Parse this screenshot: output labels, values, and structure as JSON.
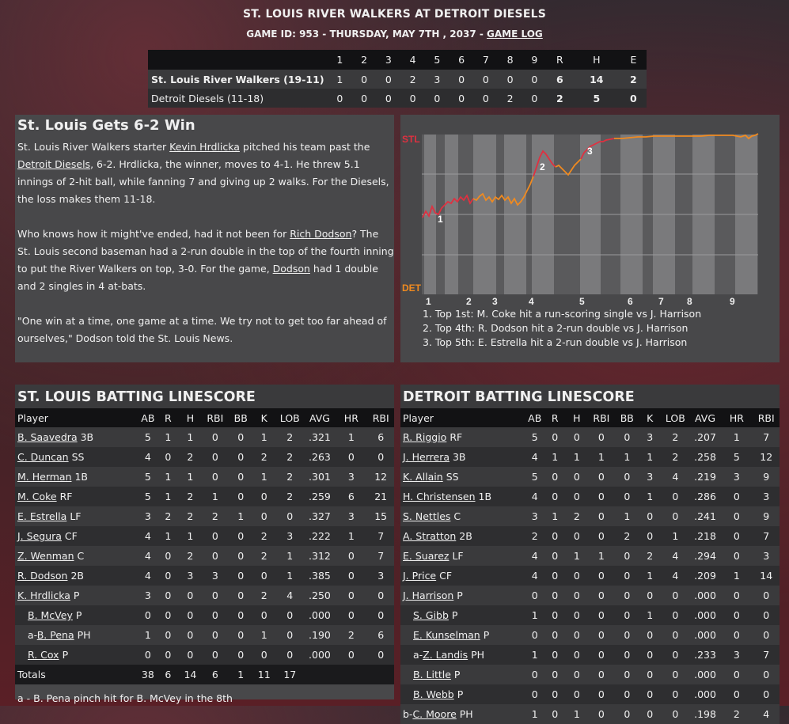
{
  "header": {
    "title": "ST. LOUIS RIVER WALKERS AT DETROIT DIESELS",
    "subtitle": "GAME ID: 953 - THURSDAY, MAY 7TH , 2037 - ",
    "game_log_link": "GAME LOG"
  },
  "linescore": {
    "columns": [
      "1",
      "2",
      "3",
      "4",
      "5",
      "6",
      "7",
      "8",
      "9",
      "R",
      "H",
      "E"
    ],
    "rows": [
      {
        "team": "St. Louis River Walkers (19-11)",
        "innings": [
          "1",
          "0",
          "0",
          "2",
          "3",
          "0",
          "0",
          "0",
          "0"
        ],
        "r": "6",
        "h": "14",
        "e": "2"
      },
      {
        "team": "Detroit Diesels (11-18)",
        "innings": [
          "0",
          "0",
          "0",
          "0",
          "0",
          "0",
          "0",
          "2",
          "0"
        ],
        "r": "2",
        "h": "5",
        "e": "0"
      }
    ]
  },
  "recap": {
    "title": "St. Louis Gets 6-2 Win",
    "p1": [
      "St. Louis River Walkers starter ",
      "Kevin Hrdlicka",
      " pitched his team past the ",
      "Detroit Diesels",
      ", 6-2. Hrdlicka, the winner, moves to 4-1. He threw 5.1 innings of 2-hit ball, while fanning 7 and giving up 2 walks. For the Diesels, the loss makes them 11-18."
    ],
    "p2": [
      "Who knows how it might've ended, had it not been for ",
      "Rich Dodson",
      "? The St. Louis second baseman had a 2-run double in the top of the fourth inning to put the River Walkers on top, 3-0. For the game, ",
      "Dodson",
      " had 1 double and 2 singles in 4 at-bats."
    ],
    "p3": "\"One win at a time, one game at a time. We try not to get too far ahead of ourselves,\" Dodson told the St. Louis News."
  },
  "win_prob": {
    "top_label": "STL",
    "bottom_label": "DET",
    "innings": [
      "1",
      "2",
      "3",
      "4",
      "5",
      "6",
      "7",
      "8",
      "9"
    ],
    "colors": {
      "stl": "#e03040",
      "det": "#f08a20"
    },
    "markers": [
      "1",
      "2",
      "3"
    ],
    "plays": [
      "1. Top 1st: M. Coke hit a run-scoring single vs J. Harrison",
      "2. Top 4th: R. Dodson hit a 2-run double vs J. Harrison",
      "3. Top 5th: E. Estrella hit a 2-run double vs J. Harrison"
    ]
  },
  "stl_batting": {
    "title": "ST. LOUIS BATTING LINESCORE",
    "columns": [
      "Player",
      "AB",
      "R",
      "H",
      "RBI",
      "BB",
      "K",
      "LOB",
      "AVG",
      "HR",
      "RBI"
    ],
    "rows": [
      {
        "prefix": "",
        "name": "B. Saavedra",
        "pos": "3B",
        "sub": false,
        "vals": [
          "5",
          "1",
          "1",
          "0",
          "0",
          "1",
          "2",
          ".321",
          "1",
          "6"
        ]
      },
      {
        "prefix": "",
        "name": "C. Duncan",
        "pos": "SS",
        "sub": false,
        "vals": [
          "4",
          "0",
          "2",
          "0",
          "0",
          "2",
          "2",
          ".263",
          "0",
          "0"
        ]
      },
      {
        "prefix": "",
        "name": "M. Herman",
        "pos": "1B",
        "sub": false,
        "vals": [
          "5",
          "1",
          "1",
          "0",
          "0",
          "1",
          "2",
          ".301",
          "3",
          "12"
        ]
      },
      {
        "prefix": "",
        "name": "M. Coke",
        "pos": "RF",
        "sub": false,
        "vals": [
          "5",
          "1",
          "2",
          "1",
          "0",
          "0",
          "2",
          ".259",
          "6",
          "21"
        ]
      },
      {
        "prefix": "",
        "name": "E. Estrella",
        "pos": "LF",
        "sub": false,
        "vals": [
          "3",
          "2",
          "2",
          "2",
          "1",
          "0",
          "0",
          ".327",
          "3",
          "15"
        ]
      },
      {
        "prefix": "",
        "name": "J. Segura",
        "pos": "CF",
        "sub": false,
        "vals": [
          "4",
          "1",
          "1",
          "0",
          "0",
          "2",
          "3",
          ".222",
          "1",
          "7"
        ]
      },
      {
        "prefix": "",
        "name": "Z. Wenman",
        "pos": "C",
        "sub": false,
        "vals": [
          "4",
          "0",
          "2",
          "0",
          "0",
          "2",
          "1",
          ".312",
          "0",
          "7"
        ]
      },
      {
        "prefix": "",
        "name": "R. Dodson",
        "pos": "2B",
        "sub": false,
        "vals": [
          "4",
          "0",
          "3",
          "3",
          "0",
          "0",
          "1",
          ".385",
          "0",
          "3"
        ]
      },
      {
        "prefix": "",
        "name": "K. Hrdlicka",
        "pos": "P",
        "sub": false,
        "vals": [
          "3",
          "0",
          "0",
          "0",
          "0",
          "2",
          "4",
          ".250",
          "0",
          "0"
        ]
      },
      {
        "prefix": "",
        "name": "B. McVey",
        "pos": "P",
        "sub": true,
        "vals": [
          "0",
          "0",
          "0",
          "0",
          "0",
          "0",
          "0",
          ".000",
          "0",
          "0"
        ]
      },
      {
        "prefix": "a-",
        "name": "B. Pena",
        "pos": "PH",
        "sub": true,
        "vals": [
          "1",
          "0",
          "0",
          "0",
          "0",
          "1",
          "0",
          ".190",
          "2",
          "6"
        ]
      },
      {
        "prefix": "",
        "name": "R. Cox",
        "pos": "P",
        "sub": true,
        "vals": [
          "0",
          "0",
          "0",
          "0",
          "0",
          "0",
          "0",
          ".000",
          "0",
          "0"
        ]
      }
    ],
    "totals": {
      "label": "Totals",
      "vals": [
        "38",
        "6",
        "14",
        "6",
        "1",
        "11",
        "17",
        "",
        "",
        ""
      ]
    },
    "footnote": "a - B. Pena pinch hit for B. McVey in the 8th"
  },
  "det_batting": {
    "title": "DETROIT BATTING LINESCORE",
    "columns": [
      "Player",
      "AB",
      "R",
      "H",
      "RBI",
      "BB",
      "K",
      "LOB",
      "AVG",
      "HR",
      "RBI"
    ],
    "rows": [
      {
        "prefix": "",
        "name": "R. Riggio",
        "pos": "RF",
        "sub": false,
        "vals": [
          "5",
          "0",
          "0",
          "0",
          "0",
          "3",
          "2",
          ".207",
          "1",
          "7"
        ]
      },
      {
        "prefix": "",
        "name": "J. Herrera",
        "pos": "3B",
        "sub": false,
        "vals": [
          "4",
          "1",
          "1",
          "1",
          "1",
          "1",
          "2",
          ".258",
          "5",
          "12"
        ]
      },
      {
        "prefix": "",
        "name": "K. Allain",
        "pos": "SS",
        "sub": false,
        "vals": [
          "5",
          "0",
          "0",
          "0",
          "0",
          "3",
          "4",
          ".219",
          "3",
          "9"
        ]
      },
      {
        "prefix": "",
        "name": "H. Christensen",
        "pos": "1B",
        "sub": false,
        "vals": [
          "4",
          "0",
          "0",
          "0",
          "0",
          "1",
          "0",
          ".286",
          "0",
          "3"
        ]
      },
      {
        "prefix": "",
        "name": "S. Nettles",
        "pos": "C",
        "sub": false,
        "vals": [
          "3",
          "1",
          "2",
          "0",
          "1",
          "0",
          "0",
          ".241",
          "0",
          "9"
        ]
      },
      {
        "prefix": "",
        "name": "A. Stratton",
        "pos": "2B",
        "sub": false,
        "vals": [
          "2",
          "0",
          "0",
          "0",
          "2",
          "0",
          "1",
          ".218",
          "0",
          "7"
        ]
      },
      {
        "prefix": "",
        "name": "E. Suarez",
        "pos": "LF",
        "sub": false,
        "vals": [
          "4",
          "0",
          "1",
          "1",
          "0",
          "2",
          "4",
          ".294",
          "0",
          "3"
        ]
      },
      {
        "prefix": "",
        "name": "J. Price",
        "pos": "CF",
        "sub": false,
        "vals": [
          "4",
          "0",
          "0",
          "0",
          "0",
          "1",
          "4",
          ".209",
          "1",
          "14"
        ]
      },
      {
        "prefix": "",
        "name": "J. Harrison",
        "pos": "P",
        "sub": false,
        "vals": [
          "0",
          "0",
          "0",
          "0",
          "0",
          "0",
          "0",
          ".000",
          "0",
          "0"
        ]
      },
      {
        "prefix": "",
        "name": "S. Gibb",
        "pos": "P",
        "sub": true,
        "vals": [
          "1",
          "0",
          "0",
          "0",
          "0",
          "1",
          "0",
          ".000",
          "0",
          "0"
        ]
      },
      {
        "prefix": "",
        "name": "E. Kunselman",
        "pos": "P",
        "sub": true,
        "vals": [
          "0",
          "0",
          "0",
          "0",
          "0",
          "0",
          "0",
          ".000",
          "0",
          "0"
        ]
      },
      {
        "prefix": "a-",
        "name": "Z. Landis",
        "pos": "PH",
        "sub": true,
        "vals": [
          "1",
          "0",
          "0",
          "0",
          "0",
          "0",
          "0",
          ".233",
          "3",
          "7"
        ]
      },
      {
        "prefix": "",
        "name": "B. Little",
        "pos": "P",
        "sub": true,
        "vals": [
          "0",
          "0",
          "0",
          "0",
          "0",
          "0",
          "0",
          ".000",
          "0",
          "0"
        ]
      },
      {
        "prefix": "",
        "name": "B. Webb",
        "pos": "P",
        "sub": true,
        "vals": [
          "0",
          "0",
          "0",
          "0",
          "0",
          "0",
          "0",
          ".000",
          "0",
          "0"
        ]
      },
      {
        "prefix": "b-",
        "name": "C. Moore",
        "pos": "PH",
        "sub": false,
        "vals": [
          "1",
          "0",
          "1",
          "0",
          "0",
          "0",
          "0",
          ".198",
          "2",
          "4"
        ]
      }
    ]
  }
}
